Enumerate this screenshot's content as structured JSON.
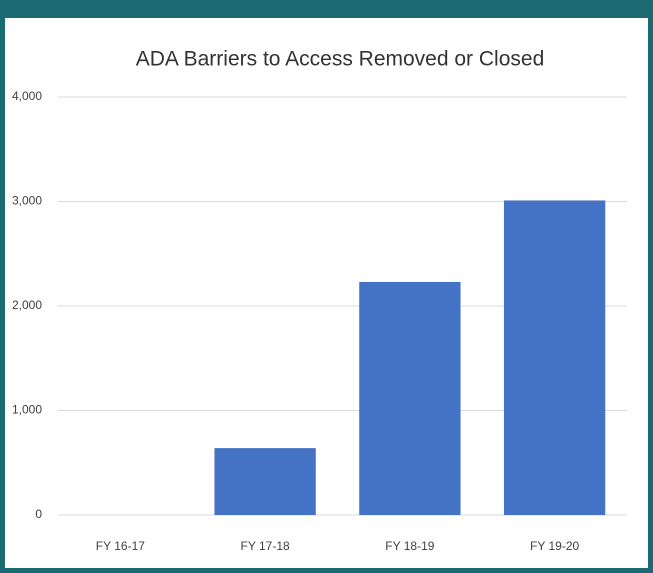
{
  "chart_data": {
    "type": "bar",
    "title": "ADA Barriers to Access Removed or Closed",
    "categories": [
      "FY 16-17",
      "FY 17-18",
      "FY 18-19",
      "FY 19-20"
    ],
    "values": [
      0,
      640,
      2230,
      3010
    ],
    "color": "#4472c4",
    "ylim": [
      0,
      4000
    ],
    "yticks": [
      0,
      {
        "value": 1000,
        "label": "1,000"
      },
      {
        "value": 2000,
        "label": "2,000"
      },
      {
        "value": 3000,
        "label": "3,000"
      },
      {
        "value": 4000,
        "label": "4,000"
      }
    ],
    "grid": true
  }
}
